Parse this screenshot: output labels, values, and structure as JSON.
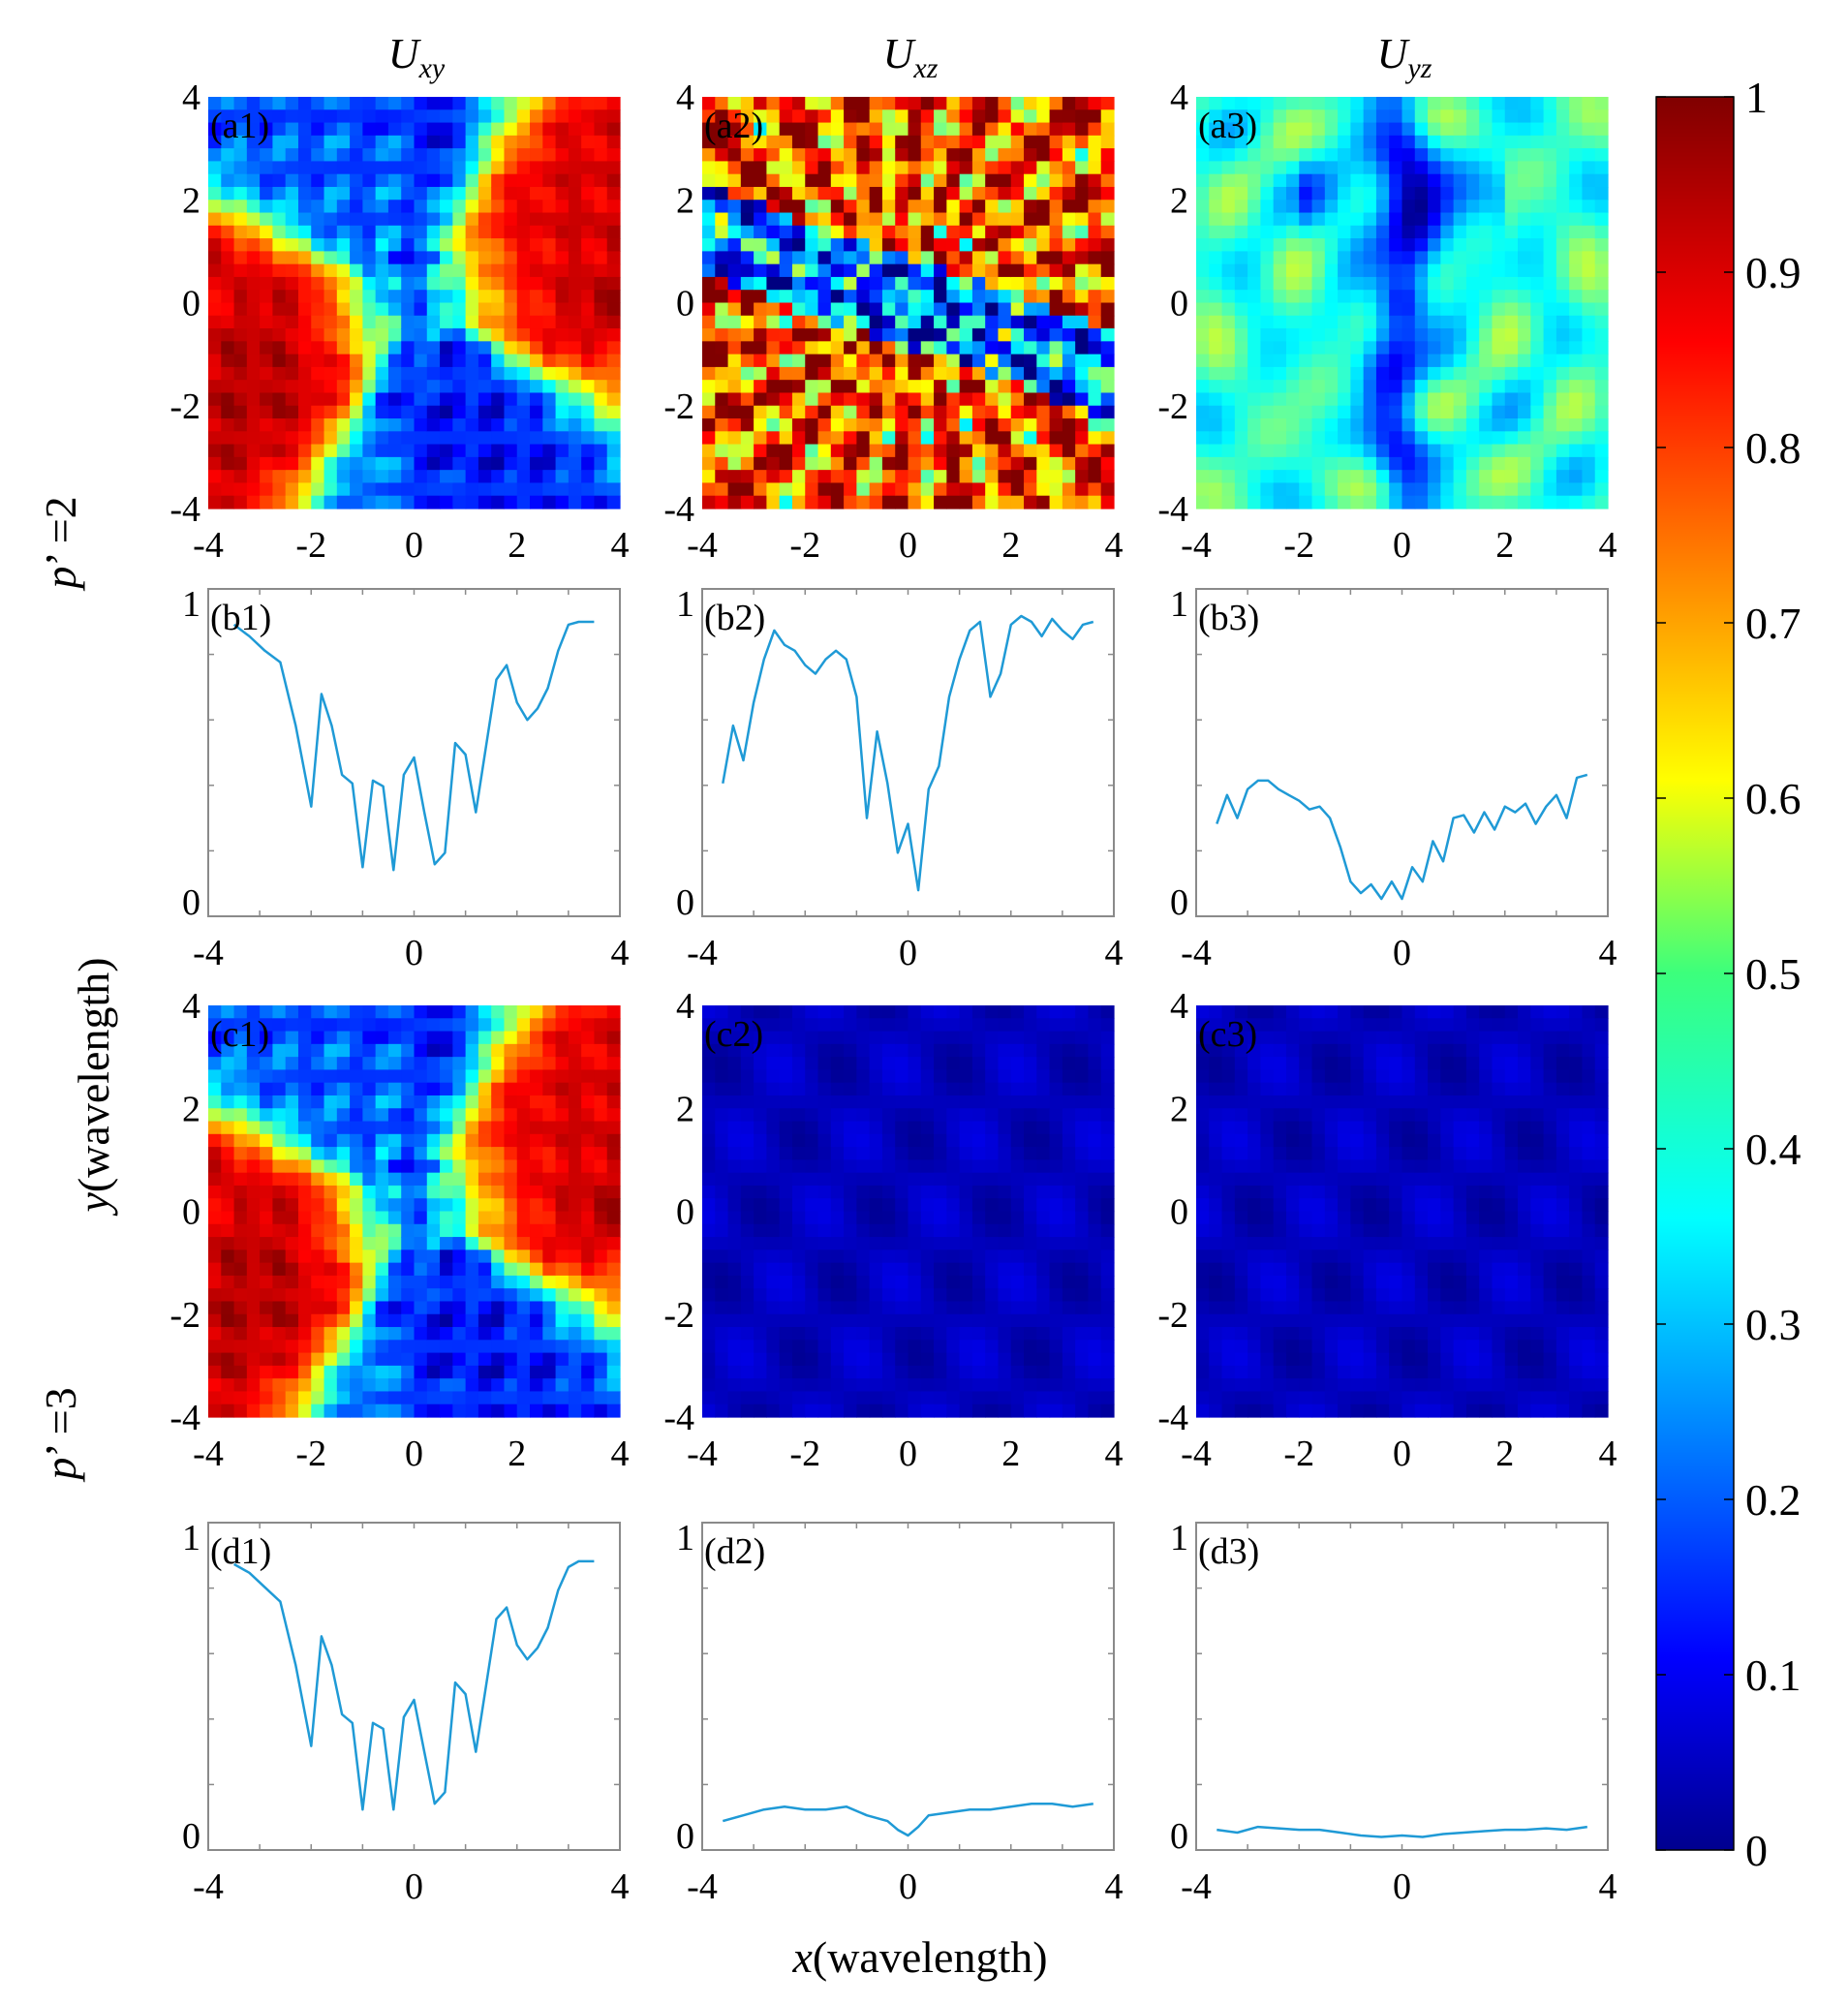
{
  "figure": {
    "column_titles": [
      {
        "main": "U",
        "sub": "xy"
      },
      {
        "main": "U",
        "sub": "xz"
      },
      {
        "main": "U",
        "sub": "yz"
      }
    ],
    "row_labels": [
      {
        "symbol": "p",
        "rest": "’ =2"
      },
      {
        "symbol": "p",
        "rest": "’ =3"
      }
    ],
    "ylabel": {
      "var": "y",
      "unit": "(wavelength)"
    },
    "xlabel": {
      "var": "x",
      "unit": "(wavelength)"
    },
    "colors": {
      "line": "#1f9ad6",
      "axis": "#000000",
      "frame": "#8a8a8a"
    }
  },
  "chart_data": [
    {
      "id": "a1",
      "type": "heatmap",
      "label": "(a1)",
      "xlim": [
        -4,
        4
      ],
      "ylim": [
        -4,
        4
      ],
      "xticks": [
        "-4",
        "-2",
        "0",
        "2",
        "4"
      ],
      "yticks": [
        "4",
        "2",
        "0",
        "-2",
        "-4"
      ],
      "pattern": "vortex",
      "mean_level": 0.62
    },
    {
      "id": "a2",
      "type": "heatmap",
      "label": "(a2)",
      "xlim": [
        -4,
        4
      ],
      "ylim": [
        -4,
        4
      ],
      "xticks": [
        "-4",
        "-2",
        "0",
        "2",
        "4"
      ],
      "yticks": [
        "4",
        "2",
        "0",
        "-2",
        "-4"
      ],
      "pattern": "speckle",
      "mean_level": 0.66
    },
    {
      "id": "a3",
      "type": "heatmap",
      "label": "(a3)",
      "xlim": [
        -4,
        4
      ],
      "ylim": [
        -4,
        4
      ],
      "xticks": [
        "-4",
        "-2",
        "0",
        "2",
        "4"
      ],
      "yticks": [
        "4",
        "2",
        "0",
        "-2",
        "-4"
      ],
      "pattern": "mid",
      "mean_level": 0.36
    },
    {
      "id": "b1",
      "type": "line",
      "label": "(b1)",
      "xlim": [
        -4,
        4
      ],
      "ylim": [
        0,
        1
      ],
      "xticks": [
        "-4",
        "0",
        "4"
      ],
      "yticks": [
        "1",
        "0"
      ],
      "x": [
        -3.5,
        -3.2,
        -2.9,
        -2.6,
        -2.3,
        -2.0,
        -1.8,
        -1.6,
        -1.4,
        -1.2,
        -1.0,
        -0.8,
        -0.6,
        -0.4,
        -0.2,
        0.0,
        0.2,
        0.4,
        0.6,
        0.8,
        1.0,
        1.2,
        1.4,
        1.6,
        1.8,
        2.0,
        2.2,
        2.4,
        2.6,
        2.8,
        3.0,
        3.2,
        3.5
      ],
      "y": [
        0.97,
        0.93,
        0.88,
        0.84,
        0.62,
        0.34,
        0.73,
        0.62,
        0.45,
        0.42,
        0.13,
        0.43,
        0.41,
        0.12,
        0.45,
        0.51,
        0.32,
        0.14,
        0.18,
        0.56,
        0.52,
        0.32,
        0.55,
        0.78,
        0.83,
        0.7,
        0.64,
        0.68,
        0.75,
        0.88,
        0.97,
        0.98,
        0.98
      ]
    },
    {
      "id": "b2",
      "type": "line",
      "label": "(b2)",
      "xlim": [
        -4,
        4
      ],
      "ylim": [
        0,
        1
      ],
      "xticks": [
        "-4",
        "0",
        "4"
      ],
      "yticks": [
        "1",
        "0"
      ],
      "x": [
        -3.6,
        -3.4,
        -3.2,
        -3.0,
        -2.8,
        -2.6,
        -2.4,
        -2.2,
        -2.0,
        -1.8,
        -1.6,
        -1.4,
        -1.2,
        -1.0,
        -0.8,
        -0.6,
        -0.4,
        -0.2,
        0.0,
        0.2,
        0.4,
        0.6,
        0.8,
        1.0,
        1.2,
        1.4,
        1.6,
        1.8,
        2.0,
        2.2,
        2.4,
        2.6,
        2.8,
        3.0,
        3.2,
        3.4,
        3.6
      ],
      "y": [
        0.42,
        0.62,
        0.5,
        0.7,
        0.85,
        0.95,
        0.9,
        0.88,
        0.83,
        0.8,
        0.85,
        0.88,
        0.85,
        0.72,
        0.3,
        0.6,
        0.42,
        0.18,
        0.28,
        0.05,
        0.4,
        0.48,
        0.72,
        0.85,
        0.95,
        0.98,
        0.72,
        0.8,
        0.97,
        1.0,
        0.98,
        0.93,
        0.99,
        0.95,
        0.92,
        0.97,
        0.98
      ]
    },
    {
      "id": "b3",
      "type": "line",
      "label": "(b3)",
      "xlim": [
        -4,
        4
      ],
      "ylim": [
        0,
        1
      ],
      "xticks": [
        "-4",
        "0",
        "4"
      ],
      "yticks": [
        "1",
        "0"
      ],
      "x": [
        -3.6,
        -3.4,
        -3.2,
        -3.0,
        -2.8,
        -2.6,
        -2.4,
        -2.2,
        -2.0,
        -1.8,
        -1.6,
        -1.4,
        -1.2,
        -1.0,
        -0.8,
        -0.6,
        -0.4,
        -0.2,
        0.0,
        0.2,
        0.4,
        0.6,
        0.8,
        1.0,
        1.2,
        1.4,
        1.6,
        1.8,
        2.0,
        2.2,
        2.4,
        2.6,
        2.8,
        3.0,
        3.2,
        3.4,
        3.6
      ],
      "y": [
        0.28,
        0.38,
        0.3,
        0.4,
        0.43,
        0.43,
        0.4,
        0.38,
        0.36,
        0.33,
        0.34,
        0.3,
        0.2,
        0.08,
        0.04,
        0.07,
        0.02,
        0.08,
        0.02,
        0.13,
        0.08,
        0.22,
        0.15,
        0.3,
        0.31,
        0.25,
        0.32,
        0.26,
        0.34,
        0.32,
        0.35,
        0.28,
        0.34,
        0.38,
        0.3,
        0.44,
        0.45
      ]
    },
    {
      "id": "c1",
      "type": "heatmap",
      "label": "(c1)",
      "xlim": [
        -4,
        4
      ],
      "ylim": [
        -4,
        4
      ],
      "xticks": [
        "-4",
        "-2",
        "0",
        "2",
        "4"
      ],
      "yticks": [
        "4",
        "2",
        "0",
        "-2",
        "-4"
      ],
      "pattern": "vortex",
      "mean_level": 0.62
    },
    {
      "id": "c2",
      "type": "heatmap",
      "label": "(c2)",
      "xlim": [
        -4,
        4
      ],
      "ylim": [
        -4,
        4
      ],
      "xticks": [
        "-4",
        "-2",
        "0",
        "2",
        "4"
      ],
      "yticks": [
        "4",
        "2",
        "0",
        "-2",
        "-4"
      ],
      "pattern": "low",
      "mean_level": 0.1
    },
    {
      "id": "c3",
      "type": "heatmap",
      "label": "(c3)",
      "xlim": [
        -4,
        4
      ],
      "ylim": [
        -4,
        4
      ],
      "xticks": [
        "-4",
        "-2",
        "0",
        "2",
        "4"
      ],
      "yticks": [
        "4",
        "2",
        "0",
        "-2",
        "-4"
      ],
      "pattern": "low",
      "mean_level": 0.05
    },
    {
      "id": "d1",
      "type": "line",
      "label": "(d1)",
      "xlim": [
        -4,
        4
      ],
      "ylim": [
        0,
        1
      ],
      "xticks": [
        "-4",
        "0",
        "4"
      ],
      "yticks": [
        "1",
        "0"
      ],
      "x": [
        -3.5,
        -3.2,
        -2.9,
        -2.6,
        -2.3,
        -2.0,
        -1.8,
        -1.6,
        -1.4,
        -1.2,
        -1.0,
        -0.8,
        -0.6,
        -0.4,
        -0.2,
        0.0,
        0.2,
        0.4,
        0.6,
        0.8,
        1.0,
        1.2,
        1.4,
        1.6,
        1.8,
        2.0,
        2.2,
        2.4,
        2.6,
        2.8,
        3.0,
        3.2,
        3.5
      ],
      "y": [
        0.95,
        0.92,
        0.87,
        0.82,
        0.6,
        0.32,
        0.7,
        0.6,
        0.43,
        0.4,
        0.1,
        0.4,
        0.38,
        0.1,
        0.42,
        0.48,
        0.3,
        0.12,
        0.16,
        0.54,
        0.5,
        0.3,
        0.53,
        0.76,
        0.8,
        0.67,
        0.62,
        0.66,
        0.73,
        0.86,
        0.94,
        0.96,
        0.96
      ]
    },
    {
      "id": "d2",
      "type": "line",
      "label": "(d2)",
      "xlim": [
        -4,
        4
      ],
      "ylim": [
        0,
        1
      ],
      "xticks": [
        "-4",
        "0",
        "4"
      ],
      "yticks": [
        "1",
        "0"
      ],
      "x": [
        -3.6,
        -3.2,
        -2.8,
        -2.4,
        -2.0,
        -1.6,
        -1.2,
        -0.8,
        -0.4,
        -0.2,
        0.0,
        0.2,
        0.4,
        0.8,
        1.2,
        1.6,
        2.0,
        2.4,
        2.8,
        3.2,
        3.6
      ],
      "y": [
        0.06,
        0.08,
        0.1,
        0.11,
        0.1,
        0.1,
        0.11,
        0.08,
        0.06,
        0.03,
        0.01,
        0.04,
        0.08,
        0.09,
        0.1,
        0.1,
        0.11,
        0.12,
        0.12,
        0.11,
        0.12
      ]
    },
    {
      "id": "d3",
      "type": "line",
      "label": "(d3)",
      "xlim": [
        -4,
        4
      ],
      "ylim": [
        0,
        1
      ],
      "xticks": [
        "-4",
        "0",
        "4"
      ],
      "yticks": [
        "1",
        "0"
      ],
      "x": [
        -3.6,
        -3.2,
        -2.8,
        -2.4,
        -2.0,
        -1.6,
        -1.2,
        -0.8,
        -0.4,
        0.0,
        0.4,
        0.8,
        1.2,
        1.6,
        2.0,
        2.4,
        2.8,
        3.2,
        3.6
      ],
      "y": [
        0.03,
        0.02,
        0.04,
        0.035,
        0.03,
        0.03,
        0.02,
        0.01,
        0.005,
        0.01,
        0.005,
        0.015,
        0.02,
        0.025,
        0.03,
        0.03,
        0.035,
        0.03,
        0.04
      ]
    },
    {
      "id": "colorbar",
      "type": "colorbar",
      "range": [
        0,
        1
      ],
      "ticks": [
        "1",
        "0.9",
        "0.8",
        "0.7",
        "0.6",
        "0.5",
        "0.4",
        "0.3",
        "0.2",
        "0.1",
        "0"
      ]
    }
  ]
}
